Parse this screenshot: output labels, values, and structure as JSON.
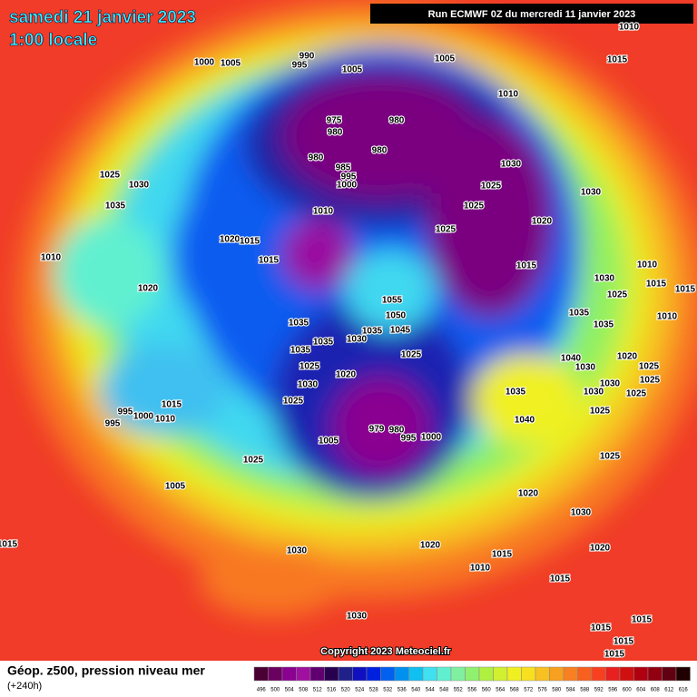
{
  "header": {
    "date": "samedi 21 janvier 2023",
    "time": "1:00 locale",
    "run": "Run ECMWF 0Z du mercredi 11 janvier 2023"
  },
  "copyright": "Copyright 2023 Meteociel.fr",
  "legend": {
    "title": "Géop. z500, pression niveau mer",
    "subtitle": "(+240h)",
    "scale": [
      496,
      500,
      504,
      508,
      512,
      516,
      520,
      524,
      528,
      532,
      536,
      540,
      544,
      548,
      552,
      556,
      560,
      564,
      568,
      572,
      576,
      580,
      584,
      588,
      592,
      596,
      600,
      604,
      608,
      612,
      616
    ],
    "colors": [
      "#4a0033",
      "#6a0060",
      "#8a0090",
      "#a010a0",
      "#600070",
      "#280050",
      "#20208a",
      "#1010c0",
      "#0020e0",
      "#0060f0",
      "#0090f0",
      "#10c0f0",
      "#40e0f0",
      "#60f0d0",
      "#80f0a0",
      "#90f070",
      "#b0f040",
      "#d0f030",
      "#f0f020",
      "#f8e020",
      "#f8c020",
      "#f8a020",
      "#f88020",
      "#f86020",
      "#f84020",
      "#e82020",
      "#d01010",
      "#b00010",
      "#900010",
      "#600010",
      "#200000"
    ]
  },
  "pressure_labels": [
    1010,
    990,
    995,
    1000,
    1005,
    1005,
    1005,
    1015,
    1010,
    975,
    980,
    980,
    980,
    980,
    985,
    995,
    1000,
    1030,
    1025,
    1025,
    1030,
    1025,
    1030,
    1035,
    1010,
    1020,
    1025,
    1020,
    1015,
    1015,
    1015,
    1010,
    1010,
    1030,
    1025,
    1015,
    1015,
    1020,
    1055,
    1050,
    1035,
    1035,
    1035,
    1010,
    1035,
    1045,
    1035,
    1030,
    1035,
    1025,
    1040,
    1020,
    1030,
    1025,
    1025,
    1020,
    1030,
    1025,
    1030,
    1035,
    1030,
    1025,
    1025,
    1015,
    995,
    1000,
    1010,
    995,
    1025,
    1040,
    979,
    980,
    995,
    1000,
    1005,
    1025,
    1025,
    1005,
    1020,
    1030,
    1015,
    1030,
    1020,
    1020,
    1015,
    1010,
    1015,
    1030,
    1015,
    1015,
    1015,
    1015
  ]
}
